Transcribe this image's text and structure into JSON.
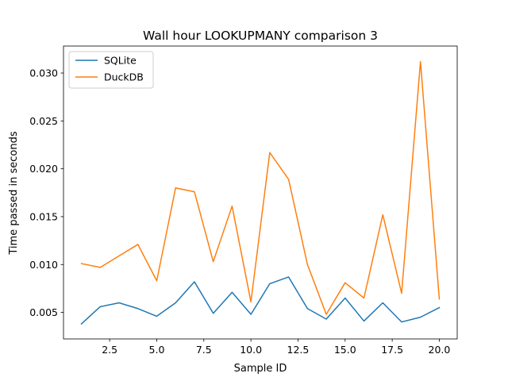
{
  "chart_data": {
    "type": "line",
    "title": "Wall hour LOOKUPMANY comparison 3",
    "xlabel": "Sample ID",
    "ylabel": "Time passed in seconds",
    "xlim": [
      0.05,
      20.95
    ],
    "ylim": [
      0.00223,
      0.03282
    ],
    "xticks": [
      2.5,
      5.0,
      7.5,
      10.0,
      12.5,
      15.0,
      17.5,
      20.0
    ],
    "xtick_labels": [
      "2.5",
      "5.0",
      "7.5",
      "10.0",
      "12.5",
      "15.0",
      "17.5",
      "20.0"
    ],
    "yticks": [
      0.005,
      0.01,
      0.015,
      0.02,
      0.025,
      0.03
    ],
    "ytick_labels": [
      "0.005",
      "0.010",
      "0.015",
      "0.020",
      "0.025",
      "0.030"
    ],
    "grid": false,
    "legend_position": "top-left",
    "x": [
      1,
      2,
      3,
      4,
      5,
      6,
      7,
      8,
      9,
      10,
      11,
      12,
      13,
      14,
      15,
      16,
      17,
      18,
      19,
      20
    ],
    "series": [
      {
        "name": "SQLite",
        "color": "#1f77b4",
        "values": [
          0.0038,
          0.0056,
          0.006,
          0.0054,
          0.0046,
          0.006,
          0.0082,
          0.0049,
          0.0071,
          0.0048,
          0.008,
          0.0087,
          0.0054,
          0.0043,
          0.0065,
          0.0041,
          0.006,
          0.004,
          0.0045,
          0.0055
        ]
      },
      {
        "name": "DuckDB",
        "color": "#ff7f0e",
        "values": [
          0.0101,
          0.0097,
          0.0109,
          0.0121,
          0.0083,
          0.018,
          0.0176,
          0.0103,
          0.0161,
          0.0061,
          0.0217,
          0.0189,
          0.01,
          0.0048,
          0.0081,
          0.0065,
          0.0152,
          0.007,
          0.0312,
          0.0064
        ]
      }
    ]
  }
}
